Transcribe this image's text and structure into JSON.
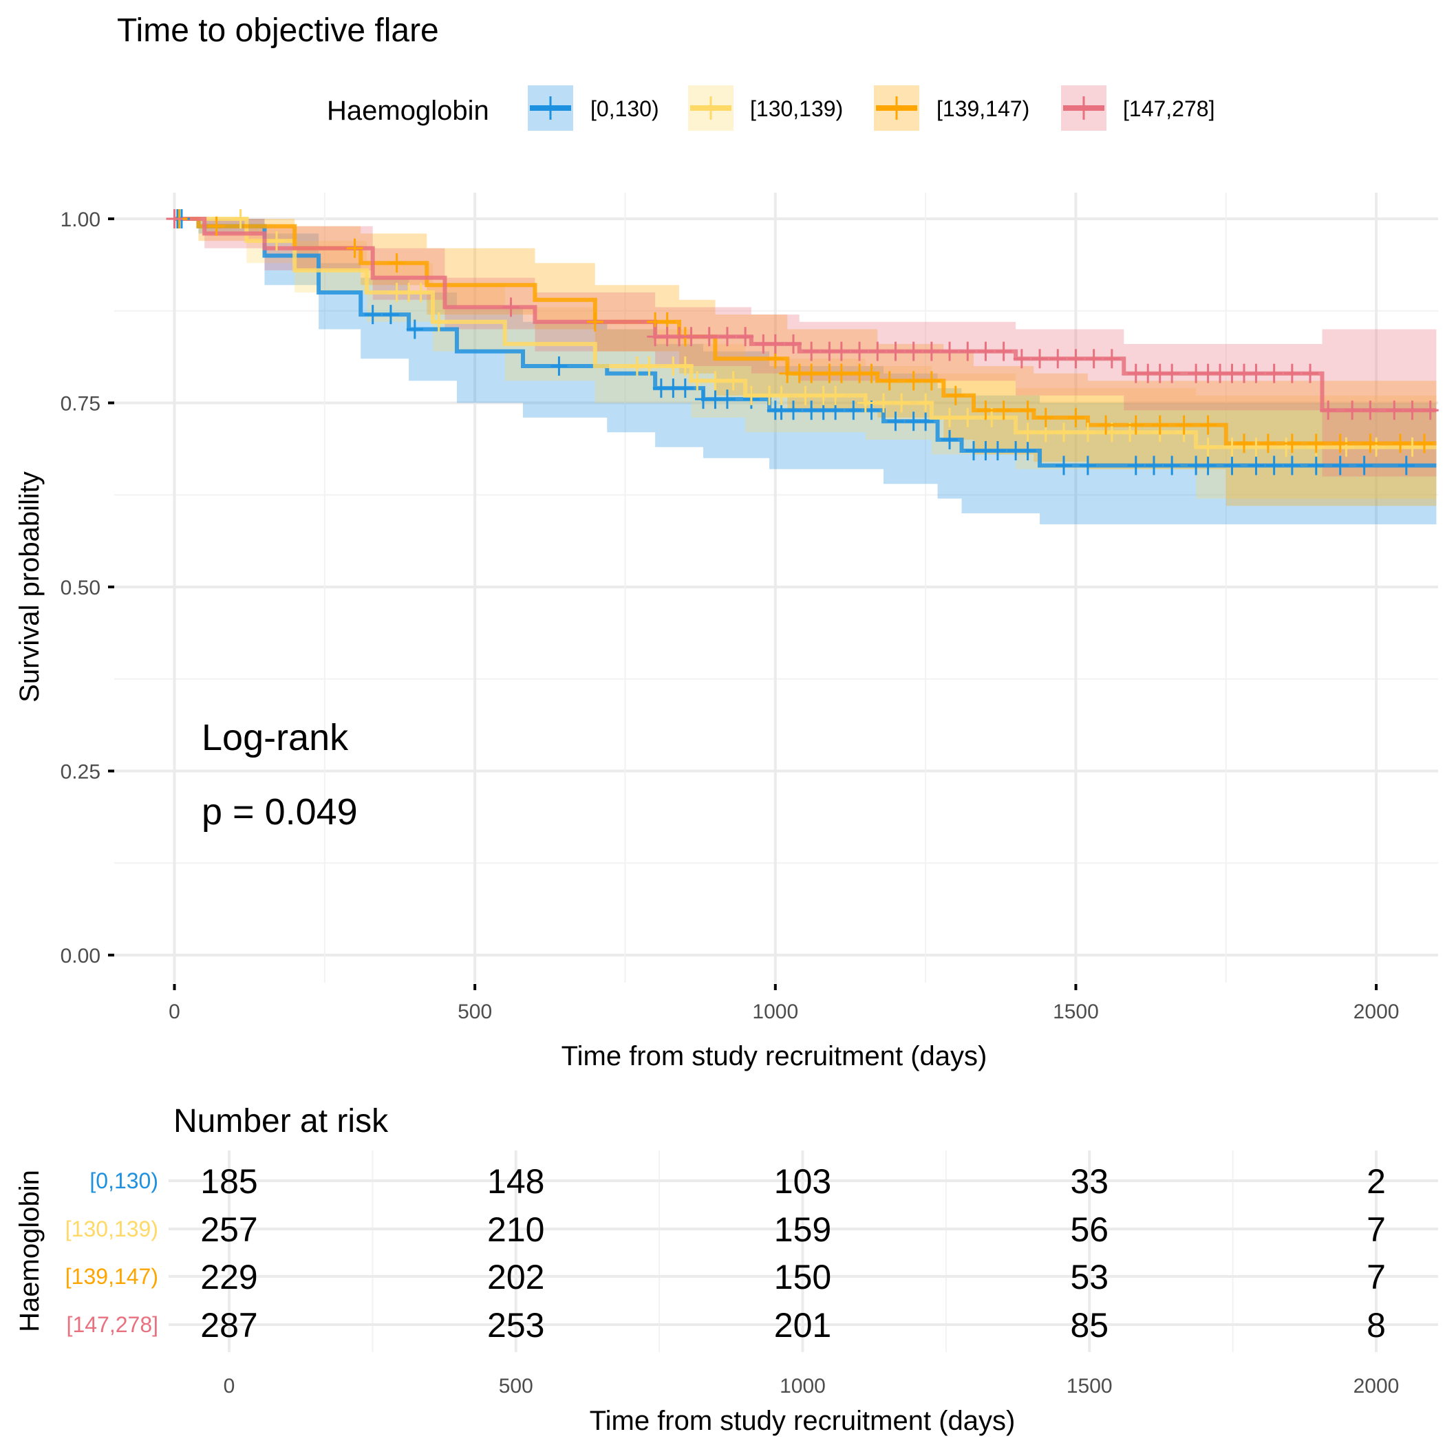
{
  "chart_data": {
    "type": "line",
    "subtype": "kaplan-meier",
    "title": "Time to objective flare",
    "xlabel": "Time from study recruitment (days)",
    "ylabel": "Survival probability",
    "xlim": [
      0,
      2100
    ],
    "ylim": [
      0,
      1
    ],
    "x_ticks": [
      0,
      500,
      1000,
      1500,
      2000
    ],
    "x_tick_labels": [
      "0",
      "500",
      "1000",
      "1500",
      "2000"
    ],
    "y_ticks": [
      0,
      0.25,
      0.5,
      0.75,
      1.0
    ],
    "y_tick_labels": [
      "0.00",
      "0.25",
      "0.50",
      "0.75",
      "1.00"
    ],
    "grid": true,
    "legend": {
      "title": "Haemoglobin",
      "position": "top",
      "entries": [
        "[0,130)",
        "[130,139)",
        "[139,147)",
        "[147,278]"
      ]
    },
    "annotation": {
      "line1": "Log-rank",
      "line2": "p = 0.049",
      "test": "Log-rank",
      "p_value": 0.049
    },
    "series": [
      {
        "name": "[0,130)",
        "color": "#1E90E0",
        "steps": [
          [
            0,
            1.0
          ],
          [
            40,
            0.99
          ],
          [
            150,
            0.95
          ],
          [
            240,
            0.9
          ],
          [
            310,
            0.87
          ],
          [
            390,
            0.85
          ],
          [
            470,
            0.82
          ],
          [
            580,
            0.8
          ],
          [
            720,
            0.79
          ],
          [
            800,
            0.77
          ],
          [
            880,
            0.755
          ],
          [
            990,
            0.74
          ],
          [
            1180,
            0.725
          ],
          [
            1270,
            0.7
          ],
          [
            1310,
            0.685
          ],
          [
            1440,
            0.665
          ],
          [
            2100,
            0.665
          ]
        ],
        "ci_lower": [
          [
            0,
            1.0
          ],
          [
            40,
            0.98
          ],
          [
            150,
            0.91
          ],
          [
            240,
            0.85
          ],
          [
            310,
            0.81
          ],
          [
            390,
            0.78
          ],
          [
            470,
            0.75
          ],
          [
            580,
            0.73
          ],
          [
            720,
            0.71
          ],
          [
            800,
            0.69
          ],
          [
            880,
            0.675
          ],
          [
            990,
            0.66
          ],
          [
            1180,
            0.64
          ],
          [
            1270,
            0.62
          ],
          [
            1310,
            0.6
          ],
          [
            1440,
            0.585
          ],
          [
            2100,
            0.585
          ]
        ],
        "ci_upper": [
          [
            0,
            1.0
          ],
          [
            40,
            1.0
          ],
          [
            150,
            0.98
          ],
          [
            240,
            0.94
          ],
          [
            310,
            0.92
          ],
          [
            390,
            0.9
          ],
          [
            470,
            0.88
          ],
          [
            580,
            0.86
          ],
          [
            720,
            0.85
          ],
          [
            800,
            0.83
          ],
          [
            880,
            0.82
          ],
          [
            990,
            0.8
          ],
          [
            1180,
            0.79
          ],
          [
            1270,
            0.77
          ],
          [
            1310,
            0.76
          ],
          [
            1440,
            0.75
          ],
          [
            2100,
            0.75
          ]
        ],
        "censor_times": [
          5,
          12,
          330,
          360,
          400,
          640,
          810,
          830,
          850,
          880,
          900,
          920,
          960,
          1000,
          1010,
          1030,
          1060,
          1080,
          1100,
          1130,
          1160,
          1200,
          1230,
          1250,
          1290,
          1330,
          1350,
          1370,
          1400,
          1420,
          1480,
          1520,
          1600,
          1630,
          1660,
          1700,
          1720,
          1760,
          1800,
          1830,
          1860,
          1900,
          1940,
          1980,
          2050
        ]
      },
      {
        "name": "[130,139)",
        "color": "#FFD966",
        "steps": [
          [
            0,
            1.0
          ],
          [
            120,
            0.97
          ],
          [
            200,
            0.93
          ],
          [
            320,
            0.9
          ],
          [
            430,
            0.86
          ],
          [
            550,
            0.83
          ],
          [
            700,
            0.8
          ],
          [
            860,
            0.78
          ],
          [
            950,
            0.76
          ],
          [
            1150,
            0.75
          ],
          [
            1260,
            0.73
          ],
          [
            1400,
            0.71
          ],
          [
            1700,
            0.69
          ],
          [
            2100,
            0.69
          ]
        ],
        "ci_lower": [
          [
            0,
            1.0
          ],
          [
            120,
            0.94
          ],
          [
            200,
            0.9
          ],
          [
            320,
            0.86
          ],
          [
            430,
            0.82
          ],
          [
            550,
            0.78
          ],
          [
            700,
            0.75
          ],
          [
            860,
            0.73
          ],
          [
            950,
            0.71
          ],
          [
            1150,
            0.7
          ],
          [
            1260,
            0.68
          ],
          [
            1400,
            0.66
          ],
          [
            1700,
            0.62
          ],
          [
            2100,
            0.62
          ]
        ],
        "ci_upper": [
          [
            0,
            1.0
          ],
          [
            120,
            0.99
          ],
          [
            200,
            0.97
          ],
          [
            320,
            0.94
          ],
          [
            430,
            0.91
          ],
          [
            550,
            0.88
          ],
          [
            700,
            0.85
          ],
          [
            860,
            0.83
          ],
          [
            950,
            0.81
          ],
          [
            1150,
            0.8
          ],
          [
            1260,
            0.79
          ],
          [
            1400,
            0.77
          ],
          [
            1700,
            0.76
          ],
          [
            2100,
            0.76
          ]
        ],
        "censor_times": [
          110,
          170,
          370,
          390,
          410,
          440,
          770,
          790,
          830,
          850,
          870,
          900,
          930,
          960,
          990,
          1010,
          1050,
          1080,
          1100,
          1150,
          1180,
          1210,
          1250,
          1290,
          1320,
          1360,
          1420,
          1450,
          1480,
          1520,
          1560,
          1590,
          1640,
          1680,
          1720,
          1760,
          1800,
          1850,
          1900,
          1950,
          2000,
          2060
        ]
      },
      {
        "name": "[139,147)",
        "color": "#FFA500",
        "steps": [
          [
            0,
            1.0
          ],
          [
            40,
            0.99
          ],
          [
            200,
            0.96
          ],
          [
            310,
            0.94
          ],
          [
            420,
            0.91
          ],
          [
            600,
            0.89
          ],
          [
            700,
            0.86
          ],
          [
            840,
            0.84
          ],
          [
            900,
            0.81
          ],
          [
            1020,
            0.79
          ],
          [
            1170,
            0.78
          ],
          [
            1280,
            0.76
          ],
          [
            1330,
            0.74
          ],
          [
            1430,
            0.73
          ],
          [
            1520,
            0.72
          ],
          [
            1750,
            0.695
          ],
          [
            2100,
            0.695
          ]
        ],
        "ci_lower": [
          [
            0,
            1.0
          ],
          [
            40,
            0.97
          ],
          [
            200,
            0.93
          ],
          [
            310,
            0.91
          ],
          [
            420,
            0.87
          ],
          [
            600,
            0.85
          ],
          [
            700,
            0.82
          ],
          [
            840,
            0.79
          ],
          [
            900,
            0.76
          ],
          [
            1020,
            0.74
          ],
          [
            1170,
            0.73
          ],
          [
            1280,
            0.7
          ],
          [
            1330,
            0.68
          ],
          [
            1430,
            0.67
          ],
          [
            1520,
            0.66
          ],
          [
            1750,
            0.61
          ],
          [
            2100,
            0.61
          ]
        ],
        "ci_upper": [
          [
            0,
            1.0
          ],
          [
            40,
            1.0
          ],
          [
            200,
            0.99
          ],
          [
            310,
            0.98
          ],
          [
            420,
            0.96
          ],
          [
            600,
            0.94
          ],
          [
            700,
            0.91
          ],
          [
            840,
            0.89
          ],
          [
            900,
            0.87
          ],
          [
            1020,
            0.85
          ],
          [
            1170,
            0.83
          ],
          [
            1280,
            0.82
          ],
          [
            1330,
            0.8
          ],
          [
            1430,
            0.79
          ],
          [
            1520,
            0.78
          ],
          [
            1750,
            0.78
          ],
          [
            2100,
            0.78
          ]
        ],
        "censor_times": [
          8,
          70,
          300,
          370,
          700,
          800,
          820,
          850,
          1000,
          1020,
          1040,
          1060,
          1090,
          1110,
          1140,
          1160,
          1190,
          1230,
          1260,
          1300,
          1350,
          1380,
          1420,
          1450,
          1500,
          1550,
          1600,
          1640,
          1680,
          1720,
          1780,
          1820,
          1860,
          1900,
          1940,
          1990,
          2040,
          2080
        ]
      },
      {
        "name": "[147,278]",
        "color": "#E8717F",
        "steps": [
          [
            0,
            1.0
          ],
          [
            50,
            0.98
          ],
          [
            150,
            0.96
          ],
          [
            330,
            0.92
          ],
          [
            450,
            0.88
          ],
          [
            600,
            0.86
          ],
          [
            800,
            0.84
          ],
          [
            960,
            0.83
          ],
          [
            1040,
            0.82
          ],
          [
            1400,
            0.81
          ],
          [
            1580,
            0.79
          ],
          [
            1910,
            0.74
          ],
          [
            2100,
            0.74
          ]
        ],
        "ci_lower": [
          [
            0,
            1.0
          ],
          [
            50,
            0.96
          ],
          [
            150,
            0.93
          ],
          [
            330,
            0.89
          ],
          [
            450,
            0.85
          ],
          [
            600,
            0.82
          ],
          [
            800,
            0.8
          ],
          [
            960,
            0.79
          ],
          [
            1040,
            0.78
          ],
          [
            1400,
            0.76
          ],
          [
            1580,
            0.74
          ],
          [
            1910,
            0.65
          ],
          [
            2100,
            0.65
          ]
        ],
        "ci_upper": [
          [
            0,
            1.0
          ],
          [
            50,
            1.0
          ],
          [
            150,
            0.99
          ],
          [
            330,
            0.96
          ],
          [
            450,
            0.92
          ],
          [
            600,
            0.9
          ],
          [
            800,
            0.88
          ],
          [
            960,
            0.87
          ],
          [
            1040,
            0.86
          ],
          [
            1400,
            0.85
          ],
          [
            1580,
            0.83
          ],
          [
            1910,
            0.85
          ],
          [
            2100,
            0.85
          ]
        ],
        "censor_times": [
          0,
          560,
          800,
          820,
          840,
          860,
          890,
          920,
          950,
          980,
          1000,
          1030,
          1060,
          1090,
          1110,
          1140,
          1170,
          1200,
          1230,
          1260,
          1290,
          1320,
          1350,
          1380,
          1410,
          1440,
          1470,
          1500,
          1530,
          1560,
          1600,
          1620,
          1640,
          1660,
          1700,
          1720,
          1740,
          1760,
          1780,
          1800,
          1830,
          1860,
          1890,
          1920,
          1960,
          1990,
          2030,
          2060,
          2090
        ]
      }
    ],
    "risk_table": {
      "title": "Number at risk",
      "ylabel": "Haemoglobin",
      "xlabel": "Time from study recruitment (days)",
      "times": [
        0,
        500,
        1000,
        1500,
        2000
      ],
      "time_labels": [
        "0",
        "500",
        "1000",
        "1500",
        "2000"
      ],
      "strata": [
        {
          "name": "[0,130)",
          "color": "#1E90E0",
          "counts": [
            185,
            148,
            103,
            33,
            2
          ]
        },
        {
          "name": "[130,139)",
          "color": "#FFD966",
          "counts": [
            257,
            210,
            159,
            56,
            7
          ]
        },
        {
          "name": "[139,147)",
          "color": "#FFA500",
          "counts": [
            229,
            202,
            150,
            53,
            7
          ]
        },
        {
          "name": "[147,278]",
          "color": "#E8717F",
          "counts": [
            287,
            253,
            201,
            85,
            8
          ]
        }
      ]
    }
  }
}
